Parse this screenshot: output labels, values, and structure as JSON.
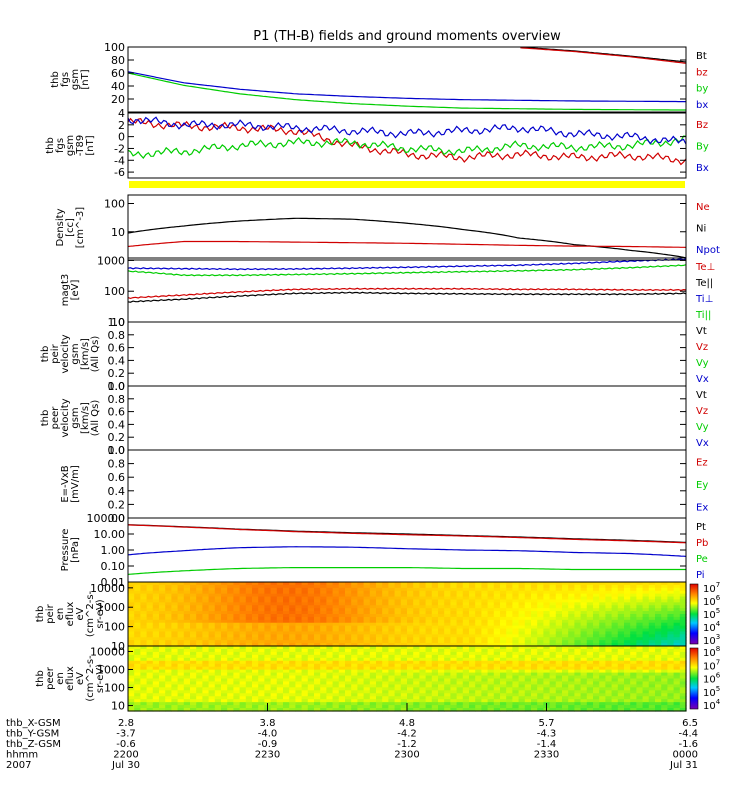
{
  "chart_data": {
    "type": "line",
    "title": "P1 (TH-B) fields and ground moments overview",
    "panels": [
      {
        "id": "fgs",
        "ylabel": [
          "thb",
          "fgs",
          "gsm",
          "[nT]"
        ],
        "ylim": [
          0,
          100
        ],
        "yticks": [
          "20",
          "40",
          "60",
          "80",
          "100"
        ],
        "legend": [
          {
            "name": "Bt",
            "color": "#000000"
          },
          {
            "name": "bz",
            "color": "#d00000"
          },
          {
            "name": "by",
            "color": "#00cc00"
          },
          {
            "name": "bx",
            "color": "#0000cc"
          }
        ],
        "series": [
          {
            "name": "Bt",
            "color": "#000000",
            "values": [
              null,
              null,
              null,
              null,
              null,
              null,
              null,
              100,
              94,
              86,
              77
            ]
          },
          {
            "name": "bz",
            "color": "#d00000",
            "values": [
              null,
              null,
              null,
              null,
              null,
              null,
              null,
              99,
              93,
              85,
              75
            ]
          },
          {
            "name": "by",
            "color": "#00cc00",
            "values": [
              60,
              41,
              28,
              19,
              13,
              9,
              6,
              5,
              4,
              3.5,
              3
            ]
          },
          {
            "name": "bx",
            "color": "#0000cc",
            "values": [
              62,
              45,
              35,
              28,
              24,
              21,
              19,
              18,
              17,
              16.5,
              16
            ]
          }
        ]
      },
      {
        "id": "fgs-t89",
        "ylabel": [
          "thb",
          "fgs",
          "gsm",
          "-T89",
          "[nT]"
        ],
        "ylim": [
          -7,
          4
        ],
        "yticks": [
          "4",
          "2",
          "0",
          "-2",
          "-4",
          "-6"
        ],
        "legend": [
          {
            "name": "Bz",
            "color": "#d00000"
          },
          {
            "name": "By",
            "color": "#00cc00"
          },
          {
            "name": "Bx",
            "color": "#0000cc"
          }
        ],
        "series": [
          {
            "name": "Bz",
            "color": "#d00000",
            "values": [
              2.5,
              1.8,
              1.5,
              1.0,
              -1.5,
              -3.0,
              -3.5,
              -3.0,
              -3.5,
              -3.2,
              -4.0
            ]
          },
          {
            "name": "By",
            "color": "#00cc00",
            "values": [
              -3.0,
              -2.5,
              -1.5,
              -1.0,
              -1.0,
              -2.0,
              -2.5,
              -1.5,
              -1.8,
              -1.5,
              -0.5
            ]
          },
          {
            "name": "Bx",
            "color": "#0000cc",
            "values": [
              3.0,
              2.0,
              2.0,
              1.5,
              1.0,
              0.5,
              1.0,
              1.5,
              0.5,
              0.0,
              -1.0
            ]
          }
        ]
      },
      {
        "id": "density",
        "ylabel": [
          "Density",
          "[cc]",
          "[cm^-3]"
        ],
        "scale": "log",
        "ylim": [
          1,
          200
        ],
        "yticks": [
          "10",
          "100"
        ],
        "legend": [
          {
            "name": "Ne",
            "color": "#d00000"
          },
          {
            "name": "Ni",
            "color": "#000000"
          },
          {
            "name": "Npot",
            "color": "#0000cc"
          }
        ],
        "series": [
          {
            "name": "Ni",
            "color": "#000000",
            "values": [
              9,
              16,
              24,
              30,
              28,
              20,
              12,
              6,
              3.5,
              2.2,
              1.2
            ]
          },
          {
            "name": "Ne",
            "color": "#d00000",
            "values": [
              3,
              4.5,
              4.5,
              4.3,
              4.1,
              3.9,
              3.6,
              3.3,
              3.1,
              3.0,
              2.8
            ]
          }
        ]
      },
      {
        "id": "magt3",
        "ylabel": [
          "magt3",
          "[eV]"
        ],
        "scale": "log",
        "ylim": [
          10,
          1200
        ],
        "yticks": [
          "10",
          "100",
          "1000"
        ],
        "legend": [
          {
            "name": "Te⊥",
            "color": "#d00000"
          },
          {
            "name": "Te||",
            "color": "#000000"
          },
          {
            "name": "Ti⊥",
            "color": "#0000cc"
          },
          {
            "name": "Ti||",
            "color": "#00cc00"
          }
        ],
        "series": [
          {
            "name": "Ti⊥",
            "color": "#0000cc",
            "values": [
              560,
              540,
              520,
              530,
              560,
              600,
              650,
              700,
              800,
              950,
              1100
            ]
          },
          {
            "name": "Ti||",
            "color": "#00cc00",
            "values": [
              450,
              330,
              330,
              350,
              370,
              400,
              430,
              460,
              500,
              580,
              700
            ]
          },
          {
            "name": "Te⊥",
            "color": "#d00000",
            "values": [
              60,
              75,
              95,
              115,
              120,
              120,
              120,
              115,
              115,
              110,
              110
            ]
          },
          {
            "name": "Te||",
            "color": "#000000",
            "values": [
              45,
              55,
              70,
              85,
              90,
              85,
              82,
              80,
              80,
              80,
              85
            ]
          }
        ]
      },
      {
        "id": "peir-velocity",
        "ylabel": [
          "thb",
          "peir",
          "velocity",
          "gsm",
          "[km/s]",
          "(All Qs)"
        ],
        "ylim": [
          0,
          1
        ],
        "yticks": [
          "0.0",
          "0.2",
          "0.4",
          "0.6",
          "0.8",
          "1.0"
        ],
        "legend": [
          {
            "name": "Vt",
            "color": "#000000"
          },
          {
            "name": "Vz",
            "color": "#d00000"
          },
          {
            "name": "Vy",
            "color": "#00cc00"
          },
          {
            "name": "Vx",
            "color": "#0000cc"
          }
        ],
        "series": []
      },
      {
        "id": "peer-velocity",
        "ylabel": [
          "thb",
          "peer",
          "velocity",
          "gsm",
          "[km/s]",
          "(All Qs)"
        ],
        "ylim": [
          0,
          1
        ],
        "yticks": [
          "0.0",
          "0.2",
          "0.4",
          "0.6",
          "0.8",
          "1.0"
        ],
        "legend": [
          {
            "name": "Vt",
            "color": "#000000"
          },
          {
            "name": "Vz",
            "color": "#d00000"
          },
          {
            "name": "Vy",
            "color": "#00cc00"
          },
          {
            "name": "Vx",
            "color": "#0000cc"
          }
        ],
        "series": []
      },
      {
        "id": "efield",
        "ylabel": [
          "E=-VxB",
          "[mV/m]"
        ],
        "ylim": [
          0,
          1
        ],
        "yticks": [
          "0.0",
          "0.2",
          "0.4",
          "0.6",
          "0.8",
          "1.0"
        ],
        "legend": [
          {
            "name": "Ez",
            "color": "#d00000"
          },
          {
            "name": "Ey",
            "color": "#00cc00"
          },
          {
            "name": "Ex",
            "color": "#0000cc"
          }
        ],
        "series": []
      },
      {
        "id": "pressure",
        "ylabel": [
          "Pressure",
          "[nPa]"
        ],
        "scale": "log",
        "ylim": [
          0.01,
          100
        ],
        "yticks": [
          "0.01",
          "0.10",
          "1.00",
          "10.00",
          "100.00"
        ],
        "legend": [
          {
            "name": "Pt",
            "color": "#000000"
          },
          {
            "name": "Pb",
            "color": "#d00000"
          },
          {
            "name": "Pe",
            "color": "#00cc00"
          },
          {
            "name": "Pi",
            "color": "#0000cc"
          }
        ],
        "series": [
          {
            "name": "Pt",
            "color": "#000000",
            "values": [
              38,
              28,
              20,
              15,
              12,
              10,
              8,
              6.5,
              5,
              4,
              3
            ]
          },
          {
            "name": "Pb",
            "color": "#d00000",
            "values": [
              37,
              27,
              19,
              14,
              11,
              9,
              7.5,
              6,
              4.6,
              3.7,
              2.8
            ]
          },
          {
            "name": "Pi",
            "color": "#0000cc",
            "values": [
              0.5,
              0.9,
              1.4,
              1.6,
              1.5,
              1.2,
              1.0,
              0.9,
              0.7,
              0.6,
              0.4
            ]
          },
          {
            "name": "Pe",
            "color": "#00cc00",
            "values": [
              0.03,
              0.05,
              0.07,
              0.08,
              0.08,
              0.08,
              0.07,
              0.07,
              0.06,
              0.06,
              0.06
            ]
          }
        ]
      }
    ],
    "spectrograms": [
      {
        "id": "peir-eflux",
        "type": "heatmap",
        "ylabel": [
          "thb",
          "peir",
          "en",
          "eflux",
          "eV",
          "(cm^2-s-",
          "sr-eV)"
        ],
        "scale": "log",
        "ylim": [
          10,
          20000
        ],
        "yticks": [
          "10",
          "100",
          "1000",
          "10000"
        ],
        "colorbar": {
          "ticks": [
            "10^3",
            "10^4",
            "10^5",
            "10^6",
            "10^7"
          ]
        }
      },
      {
        "id": "peer-eflux",
        "type": "heatmap",
        "ylabel": [
          "thb",
          "peer",
          "en",
          "eflux",
          "eV",
          "(cm^2-s-",
          "sr-eV)"
        ],
        "scale": "log",
        "ylim": [
          5,
          20000
        ],
        "yticks": [
          "10",
          "100",
          "1000",
          "10000"
        ],
        "colorbar": {
          "ticks": [
            "10^4",
            "10^5",
            "10^6",
            "10^7",
            "10^8"
          ]
        }
      }
    ],
    "xaxis": {
      "row_labels": [
        "thb_X-GSM",
        "thb_Y-GSM",
        "thb_Z-GSM",
        "hhmm",
        "2007"
      ],
      "ticks": [
        {
          "values": [
            "2.8",
            "-3.7",
            "-0.6",
            "2200",
            "Jul 30"
          ]
        },
        {
          "values": [
            "3.8",
            "-4.0",
            "-0.9",
            "2230",
            ""
          ]
        },
        {
          "values": [
            "4.8",
            "-4.2",
            "-1.2",
            "2300",
            ""
          ]
        },
        {
          "values": [
            "5.7",
            "-4.3",
            "-1.4",
            "2330",
            ""
          ]
        },
        {
          "values": [
            "6.5",
            "-4.4",
            "-1.6",
            "0000",
            "Jul 31"
          ]
        }
      ]
    }
  }
}
